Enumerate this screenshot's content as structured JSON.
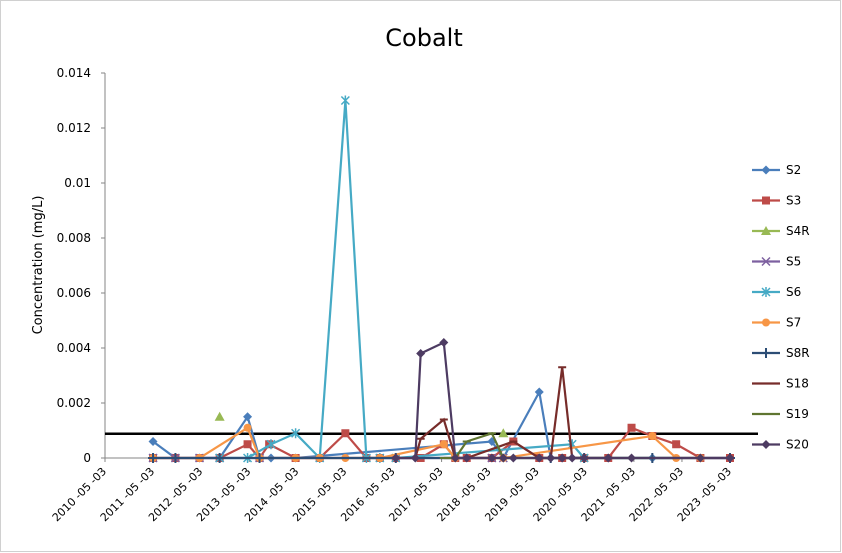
{
  "chart_data": {
    "type": "line",
    "title": "Cobalt",
    "y_label": "Concentration (mg/L)",
    "xlim": [
      "2010-05-03",
      "2023-05-03"
    ],
    "xticks": [
      {
        "value": "2010-05-03",
        "label": "2010 -05 -03"
      },
      {
        "value": "2011-05-03",
        "label": "2011 -05 -03"
      },
      {
        "value": "2012-05-03",
        "label": "2012 -05 -03"
      },
      {
        "value": "2013-05-03",
        "label": "2013 -05 -03"
      },
      {
        "value": "2014-05-03",
        "label": "2014 -05 -03"
      },
      {
        "value": "2015-05-03",
        "label": "2015 -05 -03"
      },
      {
        "value": "2016-05-03",
        "label": "2016 -05 -03"
      },
      {
        "value": "2017-05-03",
        "label": "2017 -05 -03"
      },
      {
        "value": "2018-05-03",
        "label": "2018 -05 -03"
      },
      {
        "value": "2019-05-03",
        "label": "2019 -05 -03"
      },
      {
        "value": "2020-05-03",
        "label": "2020 -05 -03"
      },
      {
        "value": "2021-05-03",
        "label": "2021 -05 -03"
      },
      {
        "value": "2022-05-03",
        "label": "2022 -05 -03"
      },
      {
        "value": "2023-05-03",
        "label": "2023 -05 -03"
      }
    ],
    "ylim": [
      0,
      0.014
    ],
    "yticks": [
      0,
      0.002,
      0.004,
      0.006,
      0.008,
      0.01,
      0.012,
      0.014
    ],
    "hline": {
      "value": 0.00088,
      "color": "#000000"
    },
    "legend": "right",
    "series": [
      {
        "name": "S2",
        "color": "#4a7ebb",
        "marker": "diamond",
        "x": [
          "2011-05-03",
          "2011-10-20",
          "2012-04-20",
          "2012-09-20",
          "2013-04-20",
          "2013-07-20",
          "2013-10-15",
          "2014-04-20",
          "2018-05-20",
          "2018-08-15",
          "2019-05-15",
          "2019-08-10",
          "2019-11-05",
          "2020-04-20",
          "2020-10-20",
          "2021-09-20",
          "2023-05-03"
        ],
        "values": [
          0.0006,
          0,
          0,
          0,
          0.0015,
          0,
          0,
          0,
          0.0006,
          0,
          0.0024,
          0,
          0,
          0,
          0,
          0,
          0
        ]
      },
      {
        "name": "S3",
        "color": "#be4b48",
        "marker": "square",
        "x": [
          "2011-05-03",
          "2011-10-20",
          "2012-04-20",
          "2012-09-20",
          "2013-04-20",
          "2013-07-20",
          "2013-10-01",
          "2014-04-20",
          "2014-10-20",
          "2015-05-03",
          "2015-10-10",
          "2016-01-20",
          "2016-05-20",
          "2016-11-25",
          "2017-05-20",
          "2017-08-15",
          "2017-11-10",
          "2018-05-20",
          "2018-10-30",
          "2019-05-15",
          "2019-11-05",
          "2020-04-20",
          "2020-10-20",
          "2021-04-15",
          "2021-09-20",
          "2022-03-20",
          "2022-09-20",
          "2023-05-03"
        ],
        "values": [
          0,
          0,
          0,
          0,
          0.0005,
          0,
          0.0005,
          0,
          0,
          0.0009,
          0,
          0,
          0,
          0,
          0.0005,
          0,
          0,
          0,
          0.0006,
          0,
          0,
          0,
          0,
          0.0011,
          0.0008,
          0.0005,
          0,
          0
        ]
      },
      {
        "name": "S4R",
        "color": "#98b954",
        "marker": "triangle",
        "x": [
          "2012-09-20",
          "2015-10-10",
          "2018-08-15"
        ],
        "values": [
          0.0015,
          null,
          0.0009
        ]
      },
      {
        "name": "S5",
        "color": "#7d60a0",
        "marker": "x",
        "x": [
          "2011-05-03",
          "2011-10-20",
          "2012-04-20",
          "2012-09-20",
          "2013-07-20",
          "2018-05-20",
          "2018-08-15"
        ],
        "values": [
          0,
          0,
          0,
          0,
          0,
          0,
          0
        ]
      },
      {
        "name": "S6",
        "color": "#46aac5",
        "marker": "star",
        "x": [
          "2012-09-20",
          "2013-04-20",
          "2013-10-15",
          "2014-04-20",
          "2014-10-20",
          "2015-05-03",
          "2015-10-10",
          "2016-01-20",
          "2016-05-20",
          "2020-01-20",
          "2020-04-20"
        ],
        "values": [
          0,
          0,
          0.0005,
          0.0009,
          0,
          0.013,
          0,
          0,
          0,
          0.0005,
          0
        ]
      },
      {
        "name": "S7",
        "color": "#f79646",
        "marker": "circle",
        "x": [
          "2011-05-03",
          "2012-04-20",
          "2013-04-20",
          "2013-07-20",
          "2014-04-20",
          "2014-10-20",
          "2015-05-03",
          "2016-01-20",
          "2017-05-20",
          "2017-08-15",
          "2018-08-15",
          "2021-09-20",
          "2022-03-20",
          "2022-09-20"
        ],
        "values": [
          0,
          0,
          0.0011,
          0,
          0,
          0,
          0,
          0,
          0.0005,
          0,
          0,
          0.0008,
          0,
          0
        ]
      },
      {
        "name": "S8R",
        "color": "#2c4d75",
        "marker": "plus",
        "x": [
          "2011-05-03",
          "2011-10-20",
          "2012-09-20",
          "2013-07-20",
          "2016-05-20",
          "2019-08-10",
          "2020-04-20",
          "2021-09-20",
          "2023-05-03"
        ],
        "values": [
          0,
          0,
          0,
          0,
          0,
          0,
          0,
          0,
          0
        ]
      },
      {
        "name": "S18",
        "color": "#772c2a",
        "marker": "dash",
        "x": [
          "2016-10-15",
          "2016-11-25",
          "2017-05-20",
          "2017-08-15",
          "2017-11-10",
          "2018-10-30",
          "2019-05-15",
          "2019-08-10",
          "2019-11-05",
          "2020-01-20",
          "2020-04-20"
        ],
        "values": [
          0,
          0.0007,
          0.0014,
          0,
          0,
          0.0006,
          0,
          0,
          0.0033,
          0,
          0
        ]
      },
      {
        "name": "S19",
        "color": "#5f7530",
        "marker": "dash",
        "x": [
          "2017-05-20",
          "2017-08-15",
          "2017-11-10",
          "2018-05-20",
          "2018-08-15",
          "2019-05-15",
          "2020-10-20",
          "2021-09-20",
          "2022-03-20"
        ],
        "values": [
          0,
          0,
          0.0006,
          0.0009,
          0,
          0,
          0,
          0,
          0
        ]
      },
      {
        "name": "S20",
        "color": "#4d3b62",
        "marker": "diamond",
        "x": [
          "2016-05-20",
          "2016-10-15",
          "2016-11-25",
          "2017-05-20",
          "2017-08-15",
          "2017-11-10",
          "2018-05-20",
          "2018-08-15",
          "2018-10-30",
          "2019-05-15",
          "2019-08-10",
          "2019-11-05",
          "2020-01-20",
          "2020-04-20",
          "2020-10-20",
          "2021-04-15",
          "2022-09-20",
          "2023-05-03"
        ],
        "values": [
          0,
          0,
          0.0038,
          0.0042,
          0,
          0,
          0,
          0,
          0,
          0,
          0,
          0,
          0,
          0,
          0,
          0,
          0,
          0
        ]
      }
    ]
  }
}
